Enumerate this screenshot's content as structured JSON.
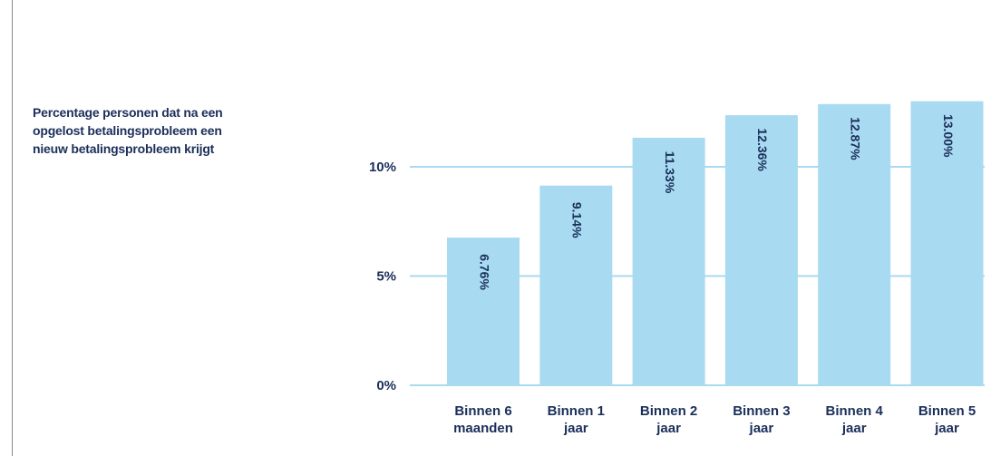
{
  "title_lines": [
    "Percentage personen dat na een",
    "opgelost betalingsprobleem een",
    "nieuw betalingsprobleem krijgt"
  ],
  "colors": {
    "bar": "#a8daf1",
    "grid": "#a8daf1",
    "text": "#1b2f5a"
  },
  "chart_data": {
    "type": "bar",
    "title": "Percentage personen dat na een opgelost betalingsprobleem een nieuw betalingsprobleem krijgt",
    "categories": [
      [
        "Binnen 6",
        "maanden"
      ],
      [
        "Binnen 1",
        "jaar"
      ],
      [
        "Binnen 2",
        "jaar"
      ],
      [
        "Binnen 3",
        "jaar"
      ],
      [
        "Binnen 4",
        "jaar"
      ],
      [
        "Binnen 5",
        "jaar"
      ]
    ],
    "values": [
      6.76,
      9.14,
      11.33,
      12.36,
      12.87,
      13.0
    ],
    "data_labels": [
      "6.76%",
      "9.14%",
      "11.33%",
      "12.36%",
      "12.87%",
      "13.00%"
    ],
    "ylim": [
      0,
      13.5
    ],
    "yticks": [
      0,
      5,
      10
    ],
    "ytick_labels": [
      "0%",
      "5%",
      "10%"
    ],
    "grid": true,
    "xlabel": "",
    "ylabel": ""
  }
}
